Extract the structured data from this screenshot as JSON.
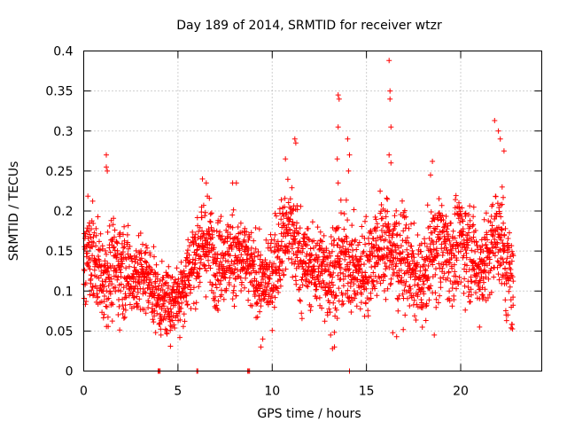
{
  "chart_data": {
    "type": "scatter",
    "title": "Day 189 of 2014, SRMTID for receiver wtzr",
    "xlabel": "GPS time / hours",
    "ylabel": "SRMTID / TECUs",
    "xlim": [
      0,
      24.3
    ],
    "ylim": [
      0,
      0.4
    ],
    "x_ticks": [
      0,
      5,
      10,
      15,
      20
    ],
    "x_tick_labels": [
      "0",
      "5",
      "10",
      "15",
      "20"
    ],
    "y_ticks": [
      0,
      0.05,
      0.1,
      0.15,
      0.2,
      0.25,
      0.3,
      0.35,
      0.4
    ],
    "y_tick_labels": [
      "0",
      "0.05",
      "0.1",
      "0.15",
      "0.2",
      "0.25",
      "0.3",
      "0.35",
      "0.4"
    ],
    "grid": true,
    "marker": "+",
    "color": "#ff0000",
    "series": [
      {
        "name": "SRMTID",
        "profile": [
          [
            0.0,
            0.15,
            0.03
          ],
          [
            0.5,
            0.14,
            0.03
          ],
          [
            1.0,
            0.12,
            0.03
          ],
          [
            1.5,
            0.13,
            0.03
          ],
          [
            2.0,
            0.13,
            0.03
          ],
          [
            2.5,
            0.12,
            0.025
          ],
          [
            3.0,
            0.12,
            0.025
          ],
          [
            3.5,
            0.11,
            0.025
          ],
          [
            4.0,
            0.09,
            0.02
          ],
          [
            4.5,
            0.085,
            0.02
          ],
          [
            5.0,
            0.095,
            0.02
          ],
          [
            5.5,
            0.12,
            0.025
          ],
          [
            6.0,
            0.15,
            0.03
          ],
          [
            6.5,
            0.16,
            0.03
          ],
          [
            7.0,
            0.14,
            0.03
          ],
          [
            7.5,
            0.14,
            0.025
          ],
          [
            8.0,
            0.145,
            0.03
          ],
          [
            8.5,
            0.14,
            0.025
          ],
          [
            9.0,
            0.12,
            0.025
          ],
          [
            9.5,
            0.11,
            0.02
          ],
          [
            10.0,
            0.12,
            0.025
          ],
          [
            10.5,
            0.17,
            0.03
          ],
          [
            11.0,
            0.18,
            0.035
          ],
          [
            11.5,
            0.14,
            0.03
          ],
          [
            12.0,
            0.13,
            0.025
          ],
          [
            12.5,
            0.13,
            0.025
          ],
          [
            13.0,
            0.12,
            0.03
          ],
          [
            13.5,
            0.13,
            0.03
          ],
          [
            14.0,
            0.14,
            0.03
          ],
          [
            14.5,
            0.12,
            0.025
          ],
          [
            15.0,
            0.13,
            0.03
          ],
          [
            15.5,
            0.15,
            0.03
          ],
          [
            16.0,
            0.16,
            0.03
          ],
          [
            16.5,
            0.15,
            0.03
          ],
          [
            17.0,
            0.14,
            0.03
          ],
          [
            17.5,
            0.12,
            0.025
          ],
          [
            18.0,
            0.11,
            0.025
          ],
          [
            18.5,
            0.15,
            0.03
          ],
          [
            19.0,
            0.16,
            0.03
          ],
          [
            19.5,
            0.14,
            0.03
          ],
          [
            20.0,
            0.16,
            0.03
          ],
          [
            20.5,
            0.15,
            0.03
          ],
          [
            21.0,
            0.13,
            0.025
          ],
          [
            21.5,
            0.14,
            0.03
          ],
          [
            22.0,
            0.18,
            0.035
          ],
          [
            22.5,
            0.12,
            0.03
          ],
          [
            22.8,
            0.1,
            0.025
          ]
        ],
        "notable_points": [
          [
            1.2,
            0.27
          ],
          [
            1.2,
            0.255
          ],
          [
            1.25,
            0.25
          ],
          [
            11.2,
            0.29
          ],
          [
            11.25,
            0.285
          ],
          [
            10.7,
            0.265
          ],
          [
            13.5,
            0.345
          ],
          [
            13.55,
            0.34
          ],
          [
            13.5,
            0.305
          ],
          [
            13.45,
            0.265
          ],
          [
            13.5,
            0.235
          ],
          [
            14.0,
            0.29
          ],
          [
            14.1,
            0.27
          ],
          [
            14.05,
            0.25
          ],
          [
            16.2,
            0.388
          ],
          [
            16.25,
            0.35
          ],
          [
            16.25,
            0.34
          ],
          [
            16.3,
            0.305
          ],
          [
            16.2,
            0.27
          ],
          [
            16.3,
            0.26
          ],
          [
            18.5,
            0.262
          ],
          [
            18.4,
            0.245
          ],
          [
            21.8,
            0.313
          ],
          [
            22.0,
            0.3
          ],
          [
            22.1,
            0.29
          ],
          [
            22.3,
            0.275
          ],
          [
            22.2,
            0.23
          ],
          [
            6.3,
            0.24
          ],
          [
            6.5,
            0.235
          ],
          [
            7.9,
            0.235
          ],
          [
            8.1,
            0.235
          ],
          [
            4.1,
            0.045
          ],
          [
            4.4,
            0.048
          ],
          [
            4.6,
            0.031
          ],
          [
            5.1,
            0.042
          ],
          [
            9.4,
            0.03
          ],
          [
            9.5,
            0.04
          ],
          [
            13.2,
            0.028
          ],
          [
            13.3,
            0.03
          ],
          [
            13.1,
            0.045
          ],
          [
            16.4,
            0.048
          ],
          [
            16.6,
            0.043
          ],
          [
            18.6,
            0.045
          ],
          [
            21.0,
            0.055
          ],
          [
            22.5,
            0.07
          ]
        ],
        "zero_markers": [
          3.95,
          4.0,
          4.05,
          6.0,
          6.05,
          8.7,
          8.75,
          8.8,
          14.1
        ]
      }
    ]
  }
}
